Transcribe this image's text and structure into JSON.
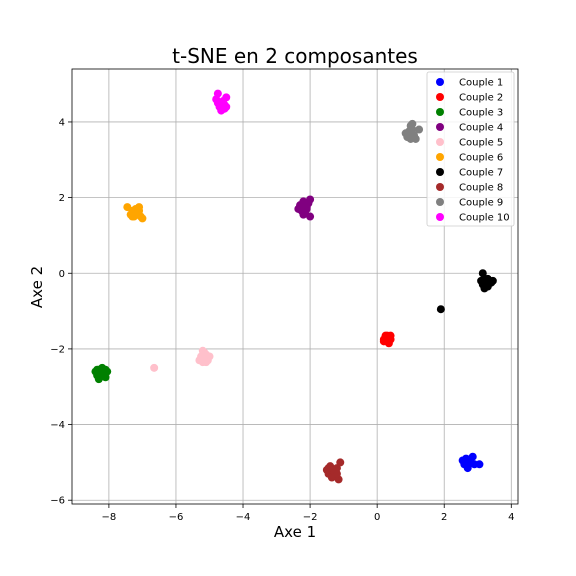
{
  "chart_data": {
    "type": "scatter",
    "title": "t-SNE en 2 composantes",
    "xlabel": "Axe 1",
    "ylabel": "Axe 2",
    "xlim": [
      -9.1,
      4.2
    ],
    "ylim": [
      -6.1,
      5.4
    ],
    "x_ticks": [
      -8,
      -6,
      -4,
      -2,
      0,
      2,
      4
    ],
    "y_ticks": [
      -6,
      -4,
      -2,
      0,
      2,
      4
    ],
    "x_tick_labels": [
      "−8",
      "−6",
      "−4",
      "−2",
      "0",
      "2",
      "4"
    ],
    "y_tick_labels": [
      "−6",
      "−4",
      "−2",
      "0",
      "2",
      "4"
    ],
    "grid": true,
    "legend_position": "top-right",
    "series": [
      {
        "name": "Couple 1",
        "color": "#0000ff",
        "points": [
          [
            2.55,
            -4.95
          ],
          [
            2.6,
            -5.05
          ],
          [
            2.65,
            -4.9
          ],
          [
            2.7,
            -5.1
          ],
          [
            2.75,
            -4.95
          ],
          [
            2.8,
            -5.0
          ],
          [
            2.85,
            -4.85
          ],
          [
            2.9,
            -5.05
          ],
          [
            2.7,
            -5.15
          ],
          [
            2.65,
            -5.0
          ],
          [
            2.8,
            -4.9
          ],
          [
            3.05,
            -5.05
          ],
          [
            2.75,
            -5.0
          ],
          [
            2.6,
            -4.95
          ]
        ]
      },
      {
        "name": "Couple 2",
        "color": "#ff0000",
        "points": [
          [
            0.2,
            -1.75
          ],
          [
            0.25,
            -1.65
          ],
          [
            0.3,
            -1.8
          ],
          [
            0.35,
            -1.7
          ],
          [
            0.4,
            -1.75
          ],
          [
            0.3,
            -1.65
          ],
          [
            0.2,
            -1.8
          ],
          [
            0.35,
            -1.85
          ],
          [
            0.25,
            -1.7
          ],
          [
            0.4,
            -1.65
          ]
        ]
      },
      {
        "name": "Couple 3",
        "color": "#008000",
        "points": [
          [
            -8.4,
            -2.6
          ],
          [
            -8.35,
            -2.7
          ],
          [
            -8.3,
            -2.55
          ],
          [
            -8.25,
            -2.65
          ],
          [
            -8.2,
            -2.5
          ],
          [
            -8.15,
            -2.6
          ],
          [
            -8.1,
            -2.55
          ],
          [
            -8.05,
            -2.6
          ],
          [
            -8.3,
            -2.8
          ],
          [
            -8.1,
            -2.75
          ],
          [
            -8.2,
            -2.65
          ],
          [
            -8.35,
            -2.55
          ]
        ]
      },
      {
        "name": "Couple 4",
        "color": "#800080",
        "points": [
          [
            -2.35,
            1.7
          ],
          [
            -2.3,
            1.8
          ],
          [
            -2.25,
            1.65
          ],
          [
            -2.2,
            1.9
          ],
          [
            -2.15,
            1.6
          ],
          [
            -2.1,
            1.75
          ],
          [
            -2.05,
            1.85
          ],
          [
            -2.0,
            1.95
          ],
          [
            -2.0,
            1.5
          ],
          [
            -2.2,
            1.55
          ],
          [
            -2.1,
            1.7
          ],
          [
            -2.25,
            1.8
          ]
        ]
      },
      {
        "name": "Couple 5",
        "color": "#ffc0cb",
        "points": [
          [
            -5.3,
            -2.3
          ],
          [
            -5.25,
            -2.2
          ],
          [
            -5.2,
            -2.35
          ],
          [
            -5.15,
            -2.25
          ],
          [
            -5.1,
            -2.15
          ],
          [
            -5.05,
            -2.3
          ],
          [
            -5.2,
            -2.05
          ],
          [
            -5.0,
            -2.2
          ],
          [
            -5.1,
            -2.35
          ],
          [
            -5.25,
            -2.3
          ],
          [
            -5.15,
            -2.1
          ],
          [
            -6.65,
            -2.5
          ]
        ]
      },
      {
        "name": "Couple 6",
        "color": "#ffa500",
        "points": [
          [
            -7.45,
            1.75
          ],
          [
            -7.35,
            1.55
          ],
          [
            -7.3,
            1.65
          ],
          [
            -7.25,
            1.5
          ],
          [
            -7.2,
            1.7
          ],
          [
            -7.15,
            1.6
          ],
          [
            -7.1,
            1.75
          ],
          [
            -7.05,
            1.5
          ],
          [
            -7.0,
            1.45
          ],
          [
            -7.2,
            1.55
          ],
          [
            -7.1,
            1.65
          ],
          [
            -7.3,
            1.5
          ]
        ]
      },
      {
        "name": "Couple 7",
        "color": "#000000",
        "points": [
          [
            3.1,
            -0.2
          ],
          [
            3.15,
            -0.3
          ],
          [
            3.2,
            -0.15
          ],
          [
            3.25,
            -0.25
          ],
          [
            3.3,
            -0.35
          ],
          [
            3.35,
            -0.2
          ],
          [
            3.4,
            -0.25
          ],
          [
            3.45,
            -0.2
          ],
          [
            3.15,
            0.0
          ],
          [
            3.2,
            -0.4
          ],
          [
            3.3,
            -0.15
          ],
          [
            3.25,
            -0.3
          ],
          [
            1.9,
            -0.95
          ]
        ]
      },
      {
        "name": "Couple 8",
        "color": "#a52a2a",
        "points": [
          [
            -1.5,
            -5.2
          ],
          [
            -1.45,
            -5.3
          ],
          [
            -1.4,
            -5.1
          ],
          [
            -1.35,
            -5.4
          ],
          [
            -1.3,
            -5.25
          ],
          [
            -1.25,
            -5.35
          ],
          [
            -1.2,
            -5.15
          ],
          [
            -1.15,
            -5.45
          ],
          [
            -1.1,
            -5.0
          ],
          [
            -1.2,
            -5.3
          ],
          [
            -1.35,
            -5.2
          ],
          [
            -1.45,
            -5.15
          ]
        ]
      },
      {
        "name": "Couple 9",
        "color": "#808080",
        "points": [
          [
            0.85,
            3.7
          ],
          [
            0.9,
            3.6
          ],
          [
            0.95,
            3.75
          ],
          [
            1.0,
            3.55
          ],
          [
            1.0,
            3.9
          ],
          [
            1.05,
            3.8
          ],
          [
            1.1,
            3.65
          ],
          [
            1.15,
            3.55
          ],
          [
            1.25,
            3.8
          ],
          [
            0.95,
            3.65
          ],
          [
            1.05,
            3.95
          ]
        ]
      },
      {
        "name": "Couple 10",
        "color": "#ff00ff",
        "points": [
          [
            -4.8,
            4.6
          ],
          [
            -4.75,
            4.5
          ],
          [
            -4.7,
            4.4
          ],
          [
            -4.65,
            4.3
          ],
          [
            -4.6,
            4.55
          ],
          [
            -4.55,
            4.45
          ],
          [
            -4.5,
            4.65
          ],
          [
            -4.5,
            4.4
          ],
          [
            -4.75,
            4.75
          ],
          [
            -4.65,
            4.5
          ],
          [
            -4.55,
            4.35
          ]
        ]
      }
    ]
  }
}
